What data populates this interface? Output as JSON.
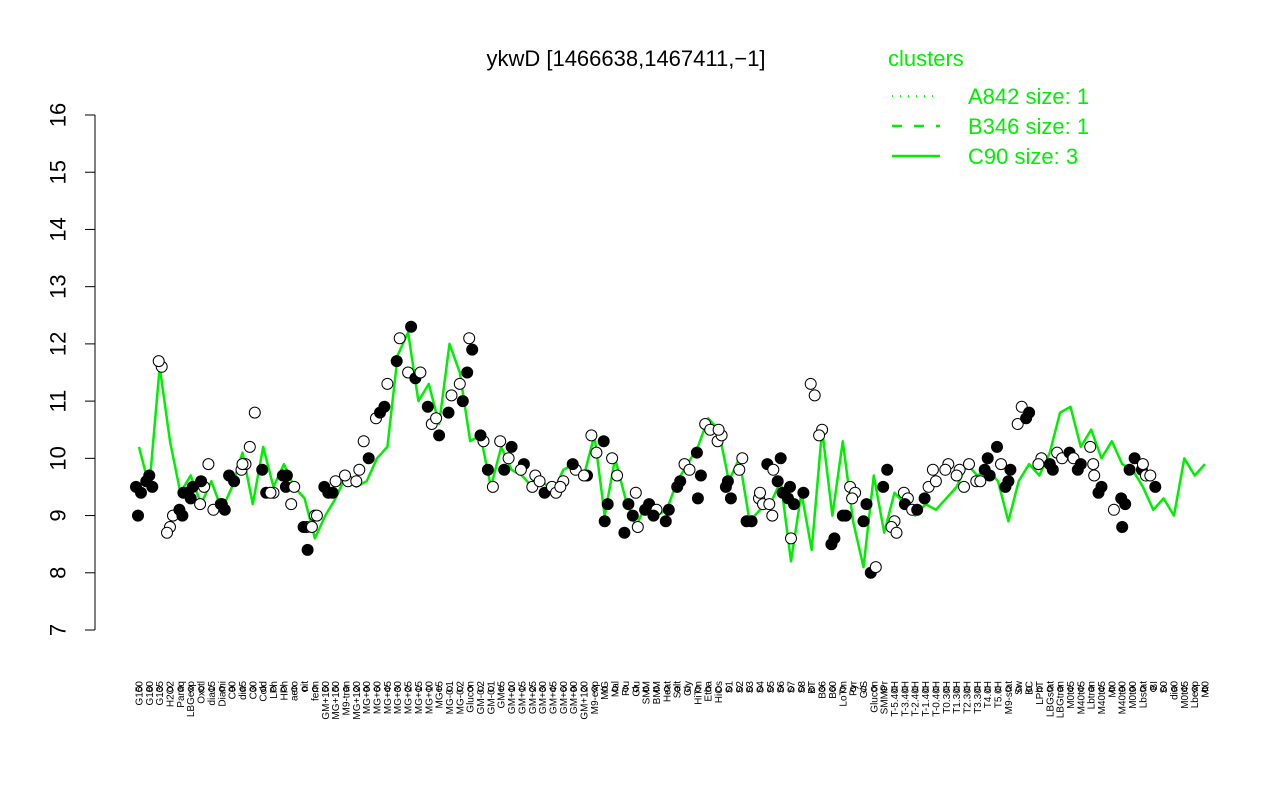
{
  "chart_data": {
    "type": "line",
    "title": "ykwD [1466638,1467411,−1]",
    "xlabel": "",
    "ylabel": "",
    "ylim": [
      7,
      16
    ],
    "yticks": [
      7,
      8,
      9,
      10,
      11,
      12,
      13,
      14,
      15,
      16
    ],
    "colors": {
      "line": "#00ee00",
      "filled_point": "#000000",
      "open_point": "#ffffff"
    },
    "legend": {
      "title": "clusters",
      "placement": "top-right",
      "entries": [
        {
          "label": "A842 size: 1",
          "style": "dotted"
        },
        {
          "label": "B346 size: 1",
          "style": "dashed"
        },
        {
          "label": "C90 size: 3",
          "style": "solid"
        }
      ]
    },
    "x_tick_labels": [
      "G150",
      "G180",
      "G135",
      "H2O2",
      "Paraq",
      "LBGexp",
      "Oxctl",
      "dia15",
      "Diami",
      "C90",
      "dia5",
      "C30",
      "Cold",
      "LPh",
      "HPh",
      "aero",
      "nit",
      "ferm",
      "GM+150",
      "MG+150",
      "M9-tran",
      "MG+120",
      "MG+90",
      "MG+60",
      "MG+45",
      "MG+30",
      "MG+25",
      "MG+15",
      "MG+10",
      "MG+5",
      "MG-0.1",
      "MG-0.2",
      "Glucon",
      "GM-0.2",
      "GM-0.1",
      "GM+5",
      "GM+10",
      "GM+15",
      "GM+25",
      "GM+30",
      "GM+45",
      "GM+60",
      "GM+90",
      "GM+120",
      "M9-exp",
      "M/G",
      "Mal",
      "Fru",
      "Glu",
      "SMM",
      "BMM",
      "Heat",
      "Salt",
      "Gly",
      "HiTm",
      "Etha",
      "HiOs",
      "S1",
      "S2",
      "S3",
      "S4",
      "S5",
      "S6",
      "S7",
      "S8",
      "BT",
      "B36",
      "B60",
      "LoTm",
      "Pyr",
      "G/S",
      "Glucon",
      "SMMPr",
      "T-5.40H",
      "T-3.40H",
      "T-2.40H",
      "T-1.40H",
      "T-0.40H",
      "T0.30H",
      "T1.30H",
      "T2.30H",
      "T3.30H",
      "T4.0H",
      "T5.0H",
      "M9-stat",
      "Sw",
      "BC",
      "LPhT",
      "LBGstat",
      "LBGtran",
      "M0t45",
      "M40t45",
      "Lbtran",
      "M40t45",
      "Mt0",
      "M40t90",
      "M0t90",
      "Lbstat",
      "BI",
      "S0",
      "dia0",
      "M0t45",
      "Lbexp",
      "Mt0"
    ],
    "series": [
      {
        "values": [
          10.2,
          9.5,
          11.6,
          10.3,
          9.4,
          9.7,
          9.2,
          9.6,
          9.1,
          9.5,
          10.1,
          9.2,
          10.2,
          9.5,
          9.9,
          9.5,
          9.3,
          8.6,
          9.0,
          9.3,
          9.7,
          9.5,
          9.6,
          10.0,
          10.2,
          11.8,
          12.2,
          11.0,
          11.3,
          10.6,
          12.0,
          11.5,
          10.3,
          10.4,
          9.5,
          10.2,
          9.8,
          9.7,
          9.5,
          9.6,
          9.4,
          9.8,
          9.9,
          9.7,
          10.4,
          9.0,
          10.0,
          9.3,
          8.8,
          9.2,
          9.0,
          9.1,
          9.6,
          9.9,
          10.2,
          10.7,
          10.5,
          9.6,
          10.0,
          8.9,
          9.1,
          9.2,
          9.6,
          8.2,
          9.4,
          8.4,
          10.5,
          9.0,
          10.3,
          8.9,
          8.1,
          9.7,
          8.7,
          9.4,
          9.2,
          9.0,
          9.2,
          9.1,
          9.3,
          9.5,
          9.9,
          9.7,
          9.8,
          9.6,
          8.9,
          9.6,
          9.9,
          9.7,
          10.1,
          10.8,
          10.9,
          10.2,
          10.5,
          10.0,
          10.3,
          9.9,
          9.8,
          9.5,
          9.1,
          9.3,
          9.0,
          10.0,
          9.7,
          9.9
        ]
      }
    ],
    "points": [
      {
        "x": 0,
        "y": 9.5,
        "f": 1
      },
      {
        "x": 0,
        "y": 9.4,
        "f": 1
      },
      {
        "x": 0,
        "y": 9.0,
        "f": 1
      },
      {
        "x": 1,
        "y": 9.5,
        "f": 1
      },
      {
        "x": 1,
        "y": 9.7,
        "f": 1
      },
      {
        "x": 1,
        "y": 9.6,
        "f": 1
      },
      {
        "x": 2,
        "y": 11.6,
        "f": 0
      },
      {
        "x": 2,
        "y": 11.7,
        "f": 0
      },
      {
        "x": 3,
        "y": 9.0,
        "f": 0
      },
      {
        "x": 3,
        "y": 8.8,
        "f": 0
      },
      {
        "x": 3,
        "y": 8.7,
        "f": 0
      },
      {
        "x": 4,
        "y": 9.0,
        "f": 1
      },
      {
        "x": 4,
        "y": 9.1,
        "f": 1
      },
      {
        "x": 4,
        "y": 9.4,
        "f": 1
      },
      {
        "x": 5,
        "y": 9.3,
        "f": 1
      },
      {
        "x": 5,
        "y": 9.4,
        "f": 1
      },
      {
        "x": 5,
        "y": 9.5,
        "f": 1
      },
      {
        "x": 6,
        "y": 9.2,
        "f": 0
      },
      {
        "x": 6,
        "y": 9.5,
        "f": 0
      },
      {
        "x": 6,
        "y": 9.6,
        "f": 1
      },
      {
        "x": 7,
        "y": 9.9,
        "f": 0
      },
      {
        "x": 7,
        "y": 9.1,
        "f": 0
      },
      {
        "x": 8,
        "y": 9.2,
        "f": 0
      },
      {
        "x": 8,
        "y": 9.1,
        "f": 1
      },
      {
        "x": 8,
        "y": 9.2,
        "f": 1
      },
      {
        "x": 9,
        "y": 9.7,
        "f": 1
      },
      {
        "x": 9,
        "y": 9.6,
        "f": 1
      },
      {
        "x": 10,
        "y": 9.8,
        "f": 0
      },
      {
        "x": 10,
        "y": 9.9,
        "f": 0
      },
      {
        "x": 10,
        "y": 9.9,
        "f": 0
      },
      {
        "x": 11,
        "y": 10.2,
        "f": 0
      },
      {
        "x": 11,
        "y": 10.8,
        "f": 0
      },
      {
        "x": 12,
        "y": 9.8,
        "f": 1
      },
      {
        "x": 12,
        "y": 9.4,
        "f": 1
      },
      {
        "x": 13,
        "y": 9.4,
        "f": 0
      },
      {
        "x": 13,
        "y": 9.4,
        "f": 0
      },
      {
        "x": 14,
        "y": 9.5,
        "f": 1
      },
      {
        "x": 14,
        "y": 9.7,
        "f": 1
      },
      {
        "x": 14,
        "y": 9.7,
        "f": 1
      },
      {
        "x": 15,
        "y": 9.5,
        "f": 0
      },
      {
        "x": 15,
        "y": 9.2,
        "f": 0
      },
      {
        "x": 16,
        "y": 8.8,
        "f": 0
      },
      {
        "x": 16,
        "y": 8.8,
        "f": 1
      },
      {
        "x": 16,
        "y": 8.4,
        "f": 1
      },
      {
        "x": 17,
        "y": 9.0,
        "f": 0
      },
      {
        "x": 17,
        "y": 8.8,
        "f": 0
      },
      {
        "x": 17,
        "y": 9.0,
        "f": 0
      },
      {
        "x": 18,
        "y": 9.5,
        "f": 1
      },
      {
        "x": 18,
        "y": 9.4,
        "f": 1
      },
      {
        "x": 19,
        "y": 9.6,
        "f": 0
      },
      {
        "x": 19,
        "y": 9.4,
        "f": 1
      },
      {
        "x": 20,
        "y": 9.6,
        "f": 0
      },
      {
        "x": 20,
        "y": 9.7,
        "f": 0
      },
      {
        "x": 21,
        "y": 9.8,
        "f": 0
      },
      {
        "x": 21,
        "y": 9.6,
        "f": 0
      },
      {
        "x": 22,
        "y": 10.3,
        "f": 0
      },
      {
        "x": 22,
        "y": 10.0,
        "f": 1
      },
      {
        "x": 23,
        "y": 10.7,
        "f": 0
      },
      {
        "x": 23,
        "y": 10.8,
        "f": 1
      },
      {
        "x": 24,
        "y": 11.3,
        "f": 0
      },
      {
        "x": 24,
        "y": 10.9,
        "f": 1
      },
      {
        "x": 25,
        "y": 12.1,
        "f": 0
      },
      {
        "x": 25,
        "y": 11.7,
        "f": 1
      },
      {
        "x": 26,
        "y": 12.3,
        "f": 1
      },
      {
        "x": 26,
        "y": 11.5,
        "f": 0
      },
      {
        "x": 27,
        "y": 11.4,
        "f": 1
      },
      {
        "x": 27,
        "y": 11.5,
        "f": 0
      },
      {
        "x": 28,
        "y": 10.9,
        "f": 1
      },
      {
        "x": 28,
        "y": 10.6,
        "f": 0
      },
      {
        "x": 29,
        "y": 10.4,
        "f": 1
      },
      {
        "x": 29,
        "y": 10.7,
        "f": 0
      },
      {
        "x": 30,
        "y": 11.1,
        "f": 0
      },
      {
        "x": 30,
        "y": 10.8,
        "f": 1
      },
      {
        "x": 31,
        "y": 11.0,
        "f": 1
      },
      {
        "x": 31,
        "y": 11.3,
        "f": 0
      },
      {
        "x": 32,
        "y": 11.5,
        "f": 1
      },
      {
        "x": 32,
        "y": 11.9,
        "f": 1
      },
      {
        "x": 32,
        "y": 12.1,
        "f": 0
      },
      {
        "x": 33,
        "y": 10.3,
        "f": 0
      },
      {
        "x": 33,
        "y": 10.4,
        "f": 1
      },
      {
        "x": 34,
        "y": 9.8,
        "f": 1
      },
      {
        "x": 34,
        "y": 9.5,
        "f": 0
      },
      {
        "x": 35,
        "y": 10.3,
        "f": 0
      },
      {
        "x": 35,
        "y": 9.8,
        "f": 1
      },
      {
        "x": 36,
        "y": 10.2,
        "f": 1
      },
      {
        "x": 36,
        "y": 10.0,
        "f": 0
      },
      {
        "x": 37,
        "y": 9.9,
        "f": 1
      },
      {
        "x": 37,
        "y": 9.8,
        "f": 0
      },
      {
        "x": 38,
        "y": 9.7,
        "f": 0
      },
      {
        "x": 38,
        "y": 9.5,
        "f": 0
      },
      {
        "x": 39,
        "y": 9.6,
        "f": 0
      },
      {
        "x": 39,
        "y": 9.4,
        "f": 1
      },
      {
        "x": 40,
        "y": 9.5,
        "f": 0
      },
      {
        "x": 40,
        "y": 9.4,
        "f": 0
      },
      {
        "x": 41,
        "y": 9.6,
        "f": 0
      },
      {
        "x": 41,
        "y": 9.5,
        "f": 0
      },
      {
        "x": 42,
        "y": 9.8,
        "f": 0
      },
      {
        "x": 42,
        "y": 9.9,
        "f": 1
      },
      {
        "x": 43,
        "y": 9.7,
        "f": 1
      },
      {
        "x": 43,
        "y": 9.7,
        "f": 0
      },
      {
        "x": 44,
        "y": 10.4,
        "f": 0
      },
      {
        "x": 44,
        "y": 10.1,
        "f": 0
      },
      {
        "x": 45,
        "y": 10.3,
        "f": 1
      },
      {
        "x": 45,
        "y": 9.2,
        "f": 1
      },
      {
        "x": 45,
        "y": 8.9,
        "f": 1
      },
      {
        "x": 46,
        "y": 10.0,
        "f": 0
      },
      {
        "x": 46,
        "y": 9.7,
        "f": 0
      },
      {
        "x": 47,
        "y": 8.7,
        "f": 1
      },
      {
        "x": 47,
        "y": 9.2,
        "f": 1
      },
      {
        "x": 48,
        "y": 9.4,
        "f": 0
      },
      {
        "x": 48,
        "y": 9.0,
        "f": 1
      },
      {
        "x": 48,
        "y": 8.8,
        "f": 0
      },
      {
        "x": 49,
        "y": 9.1,
        "f": 1
      },
      {
        "x": 49,
        "y": 9.2,
        "f": 1
      },
      {
        "x": 50,
        "y": 9.1,
        "f": 0
      },
      {
        "x": 50,
        "y": 9.0,
        "f": 1
      },
      {
        "x": 51,
        "y": 9.1,
        "f": 1
      },
      {
        "x": 51,
        "y": 8.9,
        "f": 1
      },
      {
        "x": 52,
        "y": 9.6,
        "f": 1
      },
      {
        "x": 52,
        "y": 9.5,
        "f": 1
      },
      {
        "x": 53,
        "y": 9.9,
        "f": 0
      },
      {
        "x": 53,
        "y": 9.8,
        "f": 0
      },
      {
        "x": 54,
        "y": 10.1,
        "f": 1
      },
      {
        "x": 54,
        "y": 9.7,
        "f": 1
      },
      {
        "x": 54,
        "y": 9.3,
        "f": 1
      },
      {
        "x": 55,
        "y": 10.6,
        "f": 0
      },
      {
        "x": 55,
        "y": 10.5,
        "f": 0
      },
      {
        "x": 56,
        "y": 10.3,
        "f": 0
      },
      {
        "x": 56,
        "y": 10.4,
        "f": 0
      },
      {
        "x": 56,
        "y": 10.5,
        "f": 0
      },
      {
        "x": 57,
        "y": 9.5,
        "f": 1
      },
      {
        "x": 57,
        "y": 9.3,
        "f": 1
      },
      {
        "x": 57,
        "y": 9.6,
        "f": 1
      },
      {
        "x": 58,
        "y": 10.0,
        "f": 0
      },
      {
        "x": 58,
        "y": 9.8,
        "f": 0
      },
      {
        "x": 59,
        "y": 8.9,
        "f": 1
      },
      {
        "x": 59,
        "y": 8.9,
        "f": 1
      },
      {
        "x": 60,
        "y": 9.3,
        "f": 0
      },
      {
        "x": 60,
        "y": 9.2,
        "f": 0
      },
      {
        "x": 60,
        "y": 9.4,
        "f": 0
      },
      {
        "x": 61,
        "y": 9.9,
        "f": 1
      },
      {
        "x": 61,
        "y": 9.0,
        "f": 0
      },
      {
        "x": 61,
        "y": 9.2,
        "f": 0
      },
      {
        "x": 61,
        "y": 9.8,
        "f": 0
      },
      {
        "x": 62,
        "y": 10.0,
        "f": 1
      },
      {
        "x": 62,
        "y": 9.6,
        "f": 1
      },
      {
        "x": 62,
        "y": 9.4,
        "f": 1
      },
      {
        "x": 63,
        "y": 9.5,
        "f": 1
      },
      {
        "x": 63,
        "y": 9.2,
        "f": 1
      },
      {
        "x": 63,
        "y": 8.6,
        "f": 0
      },
      {
        "x": 63,
        "y": 9.3,
        "f": 1
      },
      {
        "x": 64,
        "y": 9.4,
        "f": 1
      },
      {
        "x": 65,
        "y": 11.3,
        "f": 0
      },
      {
        "x": 65,
        "y": 11.1,
        "f": 0
      },
      {
        "x": 66,
        "y": 10.5,
        "f": 0
      },
      {
        "x": 66,
        "y": 10.4,
        "f": 0
      },
      {
        "x": 67,
        "y": 8.6,
        "f": 1
      },
      {
        "x": 67,
        "y": 8.5,
        "f": 1
      },
      {
        "x": 68,
        "y": 9.0,
        "f": 1
      },
      {
        "x": 68,
        "y": 9.0,
        "f": 1
      },
      {
        "x": 69,
        "y": 9.5,
        "f": 0
      },
      {
        "x": 69,
        "y": 9.4,
        "f": 0
      },
      {
        "x": 69,
        "y": 9.3,
        "f": 0
      },
      {
        "x": 70,
        "y": 9.2,
        "f": 1
      },
      {
        "x": 70,
        "y": 8.9,
        "f": 1
      },
      {
        "x": 71,
        "y": 8.0,
        "f": 1
      },
      {
        "x": 71,
        "y": 8.1,
        "f": 0
      },
      {
        "x": 72,
        "y": 9.5,
        "f": 1
      },
      {
        "x": 72,
        "y": 9.8,
        "f": 1
      },
      {
        "x": 73,
        "y": 8.9,
        "f": 0
      },
      {
        "x": 73,
        "y": 8.8,
        "f": 0
      },
      {
        "x": 73,
        "y": 8.7,
        "f": 0
      },
      {
        "x": 74,
        "y": 9.4,
        "f": 0
      },
      {
        "x": 74,
        "y": 9.3,
        "f": 0
      },
      {
        "x": 74,
        "y": 9.2,
        "f": 1
      },
      {
        "x": 75,
        "y": 9.1,
        "f": 0
      },
      {
        "x": 75,
        "y": 9.1,
        "f": 1
      },
      {
        "x": 76,
        "y": 9.3,
        "f": 1
      },
      {
        "x": 76,
        "y": 9.5,
        "f": 0
      },
      {
        "x": 77,
        "y": 9.6,
        "f": 0
      },
      {
        "x": 77,
        "y": 9.8,
        "f": 0
      },
      {
        "x": 78,
        "y": 9.9,
        "f": 0
      },
      {
        "x": 78,
        "y": 9.8,
        "f": 0
      },
      {
        "x": 79,
        "y": 9.8,
        "f": 0
      },
      {
        "x": 79,
        "y": 9.7,
        "f": 0
      },
      {
        "x": 80,
        "y": 9.5,
        "f": 0
      },
      {
        "x": 80,
        "y": 9.9,
        "f": 0
      },
      {
        "x": 81,
        "y": 9.6,
        "f": 0
      },
      {
        "x": 81,
        "y": 9.6,
        "f": 0
      },
      {
        "x": 82,
        "y": 10.0,
        "f": 1
      },
      {
        "x": 82,
        "y": 9.8,
        "f": 1
      },
      {
        "x": 82,
        "y": 9.7,
        "f": 1
      },
      {
        "x": 83,
        "y": 10.2,
        "f": 1
      },
      {
        "x": 83,
        "y": 9.9,
        "f": 0
      },
      {
        "x": 84,
        "y": 9.6,
        "f": 1
      },
      {
        "x": 84,
        "y": 9.5,
        "f": 1
      },
      {
        "x": 84,
        "y": 9.8,
        "f": 1
      },
      {
        "x": 85,
        "y": 10.6,
        "f": 0
      },
      {
        "x": 85,
        "y": 10.9,
        "f": 0
      },
      {
        "x": 86,
        "y": 10.8,
        "f": 1
      },
      {
        "x": 86,
        "y": 10.7,
        "f": 1
      },
      {
        "x": 87,
        "y": 10.0,
        "f": 0
      },
      {
        "x": 87,
        "y": 9.9,
        "f": 0
      },
      {
        "x": 88,
        "y": 9.8,
        "f": 1
      },
      {
        "x": 88,
        "y": 9.9,
        "f": 1
      },
      {
        "x": 89,
        "y": 10.1,
        "f": 0
      },
      {
        "x": 89,
        "y": 10.0,
        "f": 0
      },
      {
        "x": 90,
        "y": 10.1,
        "f": 1
      },
      {
        "x": 90,
        "y": 10.0,
        "f": 0
      },
      {
        "x": 91,
        "y": 9.9,
        "f": 1
      },
      {
        "x": 91,
        "y": 9.8,
        "f": 1
      },
      {
        "x": 92,
        "y": 9.9,
        "f": 0
      },
      {
        "x": 92,
        "y": 10.2,
        "f": 0
      },
      {
        "x": 92,
        "y": 9.7,
        "f": 0
      },
      {
        "x": 93,
        "y": 9.5,
        "f": 1
      },
      {
        "x": 93,
        "y": 9.4,
        "f": 1
      },
      {
        "x": 94,
        "y": 9.1,
        "f": 0
      },
      {
        "x": 95,
        "y": 9.3,
        "f": 1
      },
      {
        "x": 95,
        "y": 9.2,
        "f": 1
      },
      {
        "x": 95,
        "y": 8.8,
        "f": 1
      },
      {
        "x": 96,
        "y": 9.8,
        "f": 1
      },
      {
        "x": 96,
        "y": 10.0,
        "f": 1
      },
      {
        "x": 97,
        "y": 9.8,
        "f": 1
      },
      {
        "x": 97,
        "y": 9.7,
        "f": 0
      },
      {
        "x": 97,
        "y": 9.9,
        "f": 0
      },
      {
        "x": 98,
        "y": 9.7,
        "f": 0
      },
      {
        "x": 98,
        "y": 9.5,
        "f": 1
      }
    ]
  }
}
